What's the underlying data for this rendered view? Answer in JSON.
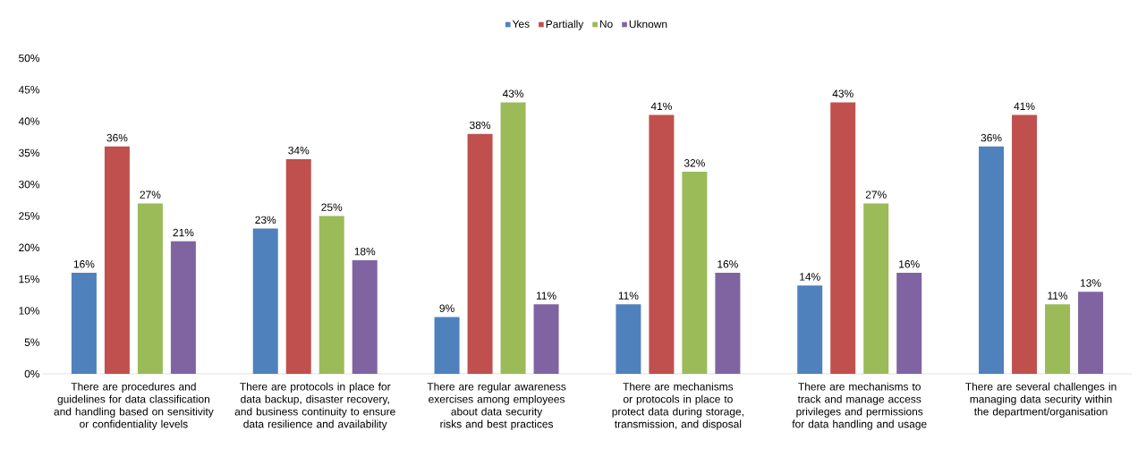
{
  "chart_data": {
    "type": "bar",
    "categories": [
      "There are procedures and guidelines for data classification and handling based on sensitivity or confidentiality levels",
      "There are protocols in place for data backup, disaster recovery, and business continuity to ensure data resilience and availability",
      "There are regular awareness exercises among employees about data security risks and best practices",
      "There are mechanisms or protocols in place to protect data during storage, transmission, and disposal",
      "There are mechanisms to track and manage access privileges and permissions for data handling and usage",
      "There are several challenges in managing data security within the department/organisation"
    ],
    "series": [
      {
        "name": "Yes",
        "color": "#4f81bd",
        "values": [
          16,
          23,
          9,
          11,
          14,
          36
        ],
        "value_labels": [
          "16%",
          "23%",
          "9%",
          "11%",
          "14%",
          "36%"
        ]
      },
      {
        "name": "Partially",
        "color": "#c0504d",
        "values": [
          36,
          34,
          38,
          41,
          43,
          41
        ],
        "value_labels": [
          "36%",
          "34%",
          "38%",
          "41%",
          "43%",
          "41%"
        ]
      },
      {
        "name": "No",
        "color": "#9bbb59",
        "values": [
          27,
          25,
          43,
          32,
          27,
          11
        ],
        "value_labels": [
          "27%",
          "25%",
          "43%",
          "32%",
          "27%",
          "11%"
        ]
      },
      {
        "name": "Uknown",
        "color": "#8064a2",
        "values": [
          21,
          18,
          11,
          16,
          16,
          13
        ],
        "value_labels": [
          "21%",
          "18%",
          "11%",
          "16%",
          "16%",
          "13%"
        ]
      }
    ],
    "ylim": [
      0,
      50
    ],
    "yticks": [
      {
        "value": 0,
        "label": "0%"
      },
      {
        "value": 5,
        "label": "5%"
      },
      {
        "value": 10,
        "label": "10%"
      },
      {
        "value": 15,
        "label": "15%"
      },
      {
        "value": 20,
        "label": "20%"
      },
      {
        "value": 25,
        "label": "25%"
      },
      {
        "value": 30,
        "label": "30%"
      },
      {
        "value": 35,
        "label": "35%"
      },
      {
        "value": 40,
        "label": "40%"
      },
      {
        "value": 45,
        "label": "45%"
      },
      {
        "value": 50,
        "label": "50%"
      }
    ],
    "legend": "top"
  }
}
